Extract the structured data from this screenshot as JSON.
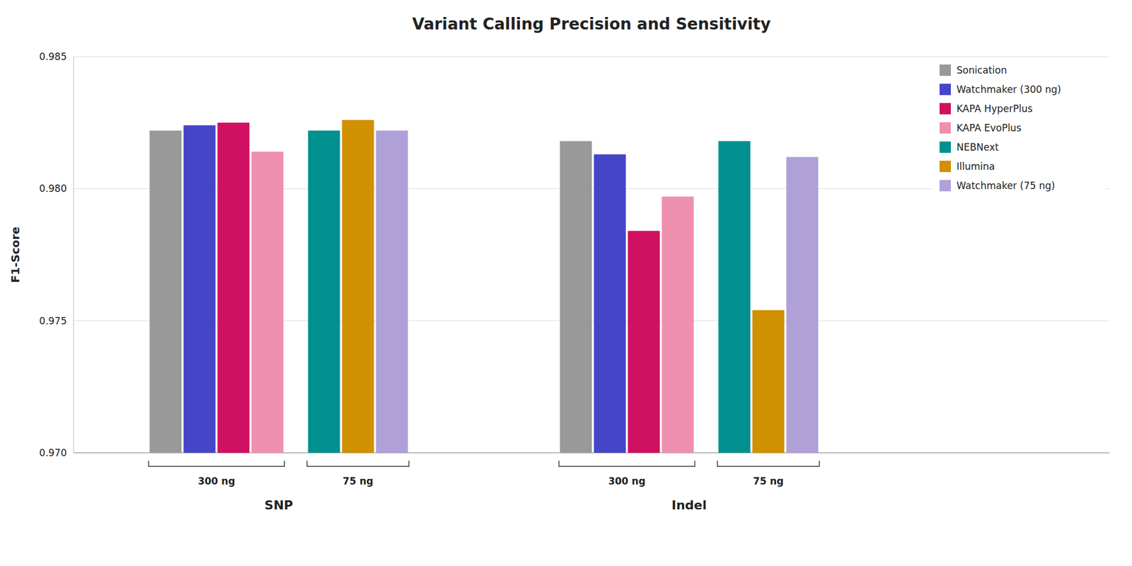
{
  "chart_data": {
    "type": "bar",
    "title": "Variant Calling Precision and Sensitivity",
    "y_label": "F1-Score",
    "categories": [
      "SNP",
      "Indel"
    ],
    "subgroups": [
      {
        "label": "300 ng",
        "series": [
          0,
          1,
          2,
          3
        ]
      },
      {
        "label": "75 ng",
        "series": [
          4,
          5,
          6
        ]
      }
    ],
    "series": [
      {
        "name": "Sonication",
        "color": "#999999",
        "values": [
          0.9822,
          0.9818
        ]
      },
      {
        "name": "Watchmaker (300 ng)",
        "color": "#4545C8",
        "values": [
          0.9824,
          0.9813
        ]
      },
      {
        "name": "KAPA HyperPlus",
        "color": "#D01060",
        "values": [
          0.9825,
          0.9784
        ]
      },
      {
        "name": "KAPA EvoPlus",
        "color": "#F090B0",
        "values": [
          0.9814,
          0.9797
        ]
      },
      {
        "name": "NEBNext",
        "color": "#009090",
        "values": [
          0.9822,
          0.9818
        ]
      },
      {
        "name": "Illumina",
        "color": "#D09000",
        "values": [
          0.9826,
          0.9754
        ]
      },
      {
        "name": "Watchmaker (75 ng)",
        "color": "#B0A0D8",
        "values": [
          0.9822,
          0.9812
        ]
      }
    ],
    "ylim": [
      0.97,
      0.985
    ],
    "yticks": [
      {
        "value": 0.97,
        "label": "0.970"
      },
      0.975,
      {
        "value": 0.98,
        "label": "0.980"
      },
      0.985
    ],
    "grid": true,
    "legend": "upper right"
  }
}
